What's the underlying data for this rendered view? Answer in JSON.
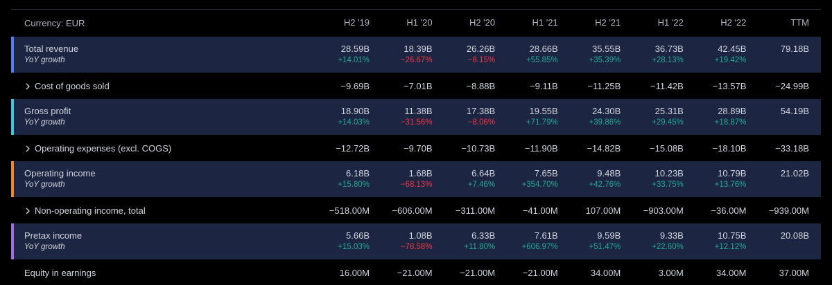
{
  "header": {
    "currency": "Currency: EUR",
    "columns": [
      "H2 '19",
      "H1 '20",
      "H2 '20",
      "H1 '21",
      "H2 '21",
      "H1 '22",
      "H2 '22",
      "TTM"
    ]
  },
  "growth_colors": {
    "positive": "#22ab94",
    "negative": "#f23645"
  },
  "rows": [
    {
      "label": "Total revenue",
      "accent": "#4f7df0",
      "values": [
        "28.59B",
        "18.39B",
        "26.26B",
        "28.66B",
        "35.55B",
        "36.73B",
        "42.45B",
        "79.18B"
      ],
      "growth_label": "YoY growth",
      "growth": [
        "+14.01%",
        "−26.67%",
        "−8.15%",
        "+55.85%",
        "+35.39%",
        "+28.13%",
        "+19.42%"
      ]
    },
    {
      "label": "Cost of goods sold",
      "expandable": true,
      "values": [
        "−9.69B",
        "−7.01B",
        "−8.88B",
        "−9.11B",
        "−11.25B",
        "−11.42B",
        "−13.57B",
        "−24.99B"
      ]
    },
    {
      "label": "Gross profit",
      "accent": "#3ec6d6",
      "values": [
        "18.90B",
        "11.38B",
        "17.38B",
        "19.55B",
        "24.30B",
        "25.31B",
        "28.89B",
        "54.19B"
      ],
      "growth_label": "YoY growth",
      "growth": [
        "+14.03%",
        "−31.56%",
        "−8.06%",
        "+71.79%",
        "+39.86%",
        "+29.45%",
        "+18.87%"
      ]
    },
    {
      "label": "Operating expenses (excl. COGS)",
      "expandable": true,
      "values": [
        "−12.72B",
        "−9.70B",
        "−10.73B",
        "−11.90B",
        "−14.82B",
        "−15.08B",
        "−18.10B",
        "−33.18B"
      ]
    },
    {
      "label": "Operating income",
      "accent": "#f0882a",
      "values": [
        "6.18B",
        "1.68B",
        "6.64B",
        "7.65B",
        "9.48B",
        "10.23B",
        "10.79B",
        "21.02B"
      ],
      "growth_label": "YoY growth",
      "growth": [
        "+15.80%",
        "−68.13%",
        "+7.46%",
        "+354.70%",
        "+42.76%",
        "+33.75%",
        "+13.76%"
      ]
    },
    {
      "label": "Non-operating income, total",
      "expandable": true,
      "values": [
        "−518.00M",
        "−606.00M",
        "−311.00M",
        "−41.00M",
        "107.00M",
        "−903.00M",
        "−36.00M",
        "−939.00M"
      ]
    },
    {
      "label": "Pretax income",
      "accent": "#a06ee0",
      "values": [
        "5.66B",
        "1.08B",
        "6.33B",
        "7.61B",
        "9.59B",
        "9.33B",
        "10.75B",
        "20.08B"
      ],
      "growth_label": "YoY growth",
      "growth": [
        "+15.03%",
        "−78.58%",
        "+11.80%",
        "+606.97%",
        "+51.47%",
        "+22.60%",
        "+12.12%"
      ]
    },
    {
      "label": "Equity in earnings",
      "values": [
        "16.00M",
        "−21.00M",
        "−21.00M",
        "−21.00M",
        "34.00M",
        "3.00M",
        "34.00M",
        "37.00M"
      ]
    }
  ]
}
